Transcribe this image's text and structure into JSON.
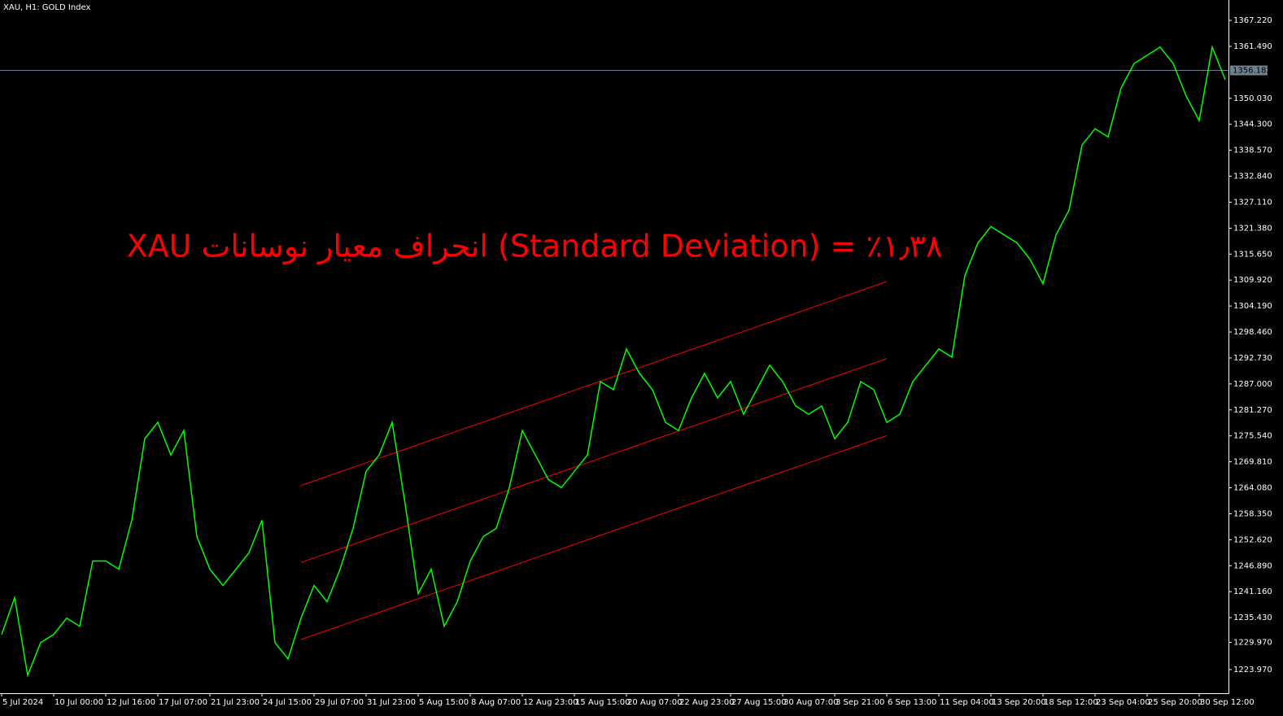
{
  "chart_data": {
    "type": "line",
    "title": "XAU, H1:  GOLD Index",
    "annotation": "XAU انحراف معیار نوسانات (Standard Deviation) = ٪۱٫۳۸",
    "categories": [
      "5 Jul 2024",
      null,
      null,
      null,
      "10 Jul 00:00",
      null,
      null,
      null,
      "12 Jul 16:00",
      null,
      null,
      null,
      "17 Jul 07:00",
      null,
      null,
      null,
      "21 Jul 23:00",
      null,
      null,
      null,
      "24 Jul 15:00",
      null,
      null,
      null,
      "29 Jul 07:00",
      null,
      null,
      null,
      "31 Jul 23:00",
      null,
      null,
      null,
      "5 Aug 15:00",
      null,
      null,
      null,
      "8 Aug 07:00",
      null,
      null,
      null,
      "12 Aug 23:00",
      null,
      null,
      null,
      "15 Aug 15:00",
      null,
      null,
      null,
      "20 Aug 07:00",
      null,
      null,
      null,
      "22 Aug 23:00",
      null,
      null,
      null,
      "27 Aug 15:00",
      null,
      null,
      null,
      "30 Aug 07:00",
      null,
      null,
      null,
      "3 Sep 21:00",
      null,
      null,
      null,
      "6 Sep 13:00",
      null,
      null,
      null,
      "11 Sep 04:00",
      null,
      null,
      null,
      "13 Sep 20:00",
      null,
      null,
      null,
      "18 Sep 12:00",
      null,
      null,
      null,
      "23 Sep 04:00",
      null,
      null,
      null,
      "25 Sep 20:00",
      null,
      null,
      null,
      "30 Sep 12:00",
      null,
      null
    ],
    "series": [
      {
        "color": "#00ff00",
        "values": [
          1231.72,
          1239.82,
          1222.72,
          1229.92,
          1231.72,
          1235.32,
          1233.52,
          1247.92,
          1247.92,
          1246.12,
          1256.92,
          1274.92,
          1278.52,
          1271.32,
          1276.72,
          1253.32,
          1246.12,
          1242.52,
          1246.12,
          1249.72,
          1256.92,
          1229.92,
          1226.32,
          1235.32,
          1242.52,
          1238.92,
          1246.12,
          1255.12,
          1267.72,
          1271.32,
          1278.52,
          1260.52,
          1240.72,
          1246.12,
          1233.52,
          1238.92,
          1247.92,
          1253.32,
          1255.12,
          1264.12,
          1276.72,
          1271.32,
          1265.92,
          1264.12,
          1267.72,
          1271.32,
          1287.52,
          1285.72,
          1294.72,
          1289.32,
          1285.72,
          1278.52,
          1276.72,
          1283.92,
          1289.32,
          1283.92,
          1287.52,
          1280.32,
          1285.72,
          1291.12,
          1287.52,
          1282.12,
          1280.32,
          1282.12,
          1274.92,
          1278.52,
          1287.52,
          1285.72,
          1278.52,
          1280.32,
          1287.52,
          1291.12,
          1294.72,
          1292.92,
          1310.92,
          1318.12,
          1321.72,
          1319.92,
          1318.12,
          1314.52,
          1309.12,
          1319.92,
          1325.32,
          1339.72,
          1343.32,
          1341.52,
          1352.32,
          1357.72,
          1359.52,
          1361.32,
          1357.72,
          1350.52,
          1345.12,
          1361.32,
          1354.12
        ]
      },
      {
        "color": "#ff0000",
        "values": [
          null,
          null,
          null,
          null,
          null,
          null,
          null,
          null,
          null,
          null,
          null,
          null,
          null,
          null,
          null,
          null,
          null,
          null,
          null,
          null,
          null,
          null,
          null,
          1264.6,
          1265.6,
          1266.6,
          1267.6,
          1268.6,
          1269.6,
          1270.6,
          1271.6,
          1272.6,
          1273.6,
          1274.6,
          1275.6,
          1276.6,
          1277.6,
          1278.6,
          1279.6,
          1280.6,
          1281.6,
          1282.6,
          1283.6,
          1284.6,
          1285.6,
          1286.6,
          1287.6,
          1288.6,
          1289.6,
          1290.6,
          1291.6,
          1292.6,
          1293.6,
          1294.6,
          1295.6,
          1296.6,
          1297.6,
          1298.6,
          1299.6,
          1300.6,
          1301.6,
          1302.6,
          1303.6,
          1304.6,
          1305.6,
          1306.6,
          1307.6,
          1308.6,
          1309.6,
          null,
          null,
          null,
          null,
          null,
          null,
          null,
          null,
          null,
          null,
          null,
          null,
          null,
          null,
          null,
          null,
          null,
          null,
          null,
          null,
          null,
          null,
          null,
          null,
          null,
          null
        ]
      },
      {
        "color": "#ff0000",
        "values": [
          null,
          null,
          null,
          null,
          null,
          null,
          null,
          null,
          null,
          null,
          null,
          null,
          null,
          null,
          null,
          null,
          null,
          null,
          null,
          null,
          null,
          null,
          null,
          1247.6,
          1248.6,
          1249.6,
          1250.6,
          1251.6,
          1252.6,
          1253.6,
          1254.6,
          1255.6,
          1256.6,
          1257.6,
          1258.6,
          1259.6,
          1260.6,
          1261.6,
          1262.6,
          1263.6,
          1264.6,
          1265.6,
          1266.6,
          1267.6,
          1268.6,
          1269.6,
          1270.6,
          1271.6,
          1272.6,
          1273.6,
          1274.6,
          1275.6,
          1276.6,
          1277.6,
          1278.6,
          1279.6,
          1280.6,
          1281.6,
          1282.6,
          1283.6,
          1284.6,
          1285.6,
          1286.6,
          1287.6,
          1288.6,
          1289.6,
          1290.6,
          1291.6,
          1292.6,
          null,
          null,
          null,
          null,
          null,
          null,
          null,
          null,
          null,
          null,
          null,
          null,
          null,
          null,
          null,
          null,
          null,
          null,
          null,
          null,
          null,
          null,
          null,
          null,
          null,
          null
        ]
      },
      {
        "color": "#ff0000",
        "values": [
          null,
          null,
          null,
          null,
          null,
          null,
          null,
          null,
          null,
          null,
          null,
          null,
          null,
          null,
          null,
          null,
          null,
          null,
          null,
          null,
          null,
          null,
          null,
          1230.6,
          1231.6,
          1232.6,
          1233.6,
          1234.6,
          1235.6,
          1236.6,
          1237.6,
          1238.6,
          1239.6,
          1240.6,
          1241.6,
          1242.6,
          1243.6,
          1244.6,
          1245.6,
          1246.6,
          1247.6,
          1248.6,
          1249.6,
          1250.6,
          1251.6,
          1252.6,
          1253.6,
          1254.6,
          1255.6,
          1256.6,
          1257.6,
          1258.6,
          1259.6,
          1260.6,
          1261.6,
          1262.6,
          1263.6,
          1264.6,
          1265.6,
          1266.6,
          1267.6,
          1268.6,
          1269.6,
          1270.6,
          1271.6,
          1272.6,
          1273.6,
          1274.6,
          1275.6,
          null,
          null,
          null,
          null,
          null,
          null,
          null,
          null,
          null,
          null,
          null,
          null,
          null,
          null,
          null,
          null,
          null,
          null,
          null,
          null,
          null,
          null,
          null,
          null,
          null,
          null
        ]
      }
    ],
    "current_price": 1356.182,
    "current_price_color": "#708090",
    "ylim": [
      1218.75,
      1371.72
    ],
    "yticks": [
      {
        "value": 1223.97,
        "label": "1223.970"
      },
      {
        "value": 1229.97,
        "label": "1229.970"
      },
      {
        "value": 1235.43,
        "label": "1235.430"
      },
      {
        "value": 1241.16,
        "label": "1241.160"
      },
      {
        "value": 1246.89,
        "label": "1246.890"
      },
      {
        "value": 1252.62,
        "label": "1252.620"
      },
      {
        "value": 1258.35,
        "label": "1258.350"
      },
      {
        "value": 1264.08,
        "label": "1264.080"
      },
      {
        "value": 1269.81,
        "label": "1269.810"
      },
      {
        "value": 1275.54,
        "label": "1275.540"
      },
      {
        "value": 1281.27,
        "label": "1281.270"
      },
      {
        "value": 1287,
        "label": "1287.000"
      },
      {
        "value": 1292.73,
        "label": "1292.730"
      },
      {
        "value": 1298.46,
        "label": "1298.460"
      },
      {
        "value": 1304.19,
        "label": "1304.190"
      },
      {
        "value": 1309.92,
        "label": "1309.920"
      },
      {
        "value": 1315.65,
        "label": "1315.650"
      },
      {
        "value": 1321.38,
        "label": "1321.380"
      },
      {
        "value": 1327.11,
        "label": "1327.110"
      },
      {
        "value": 1332.84,
        "label": "1332.840"
      },
      {
        "value": 1338.57,
        "label": "1338.570"
      },
      {
        "value": 1344.3,
        "label": "1344.300"
      },
      {
        "value": 1350.03,
        "label": "1350.030"
      },
      {
        "value": 1361.49,
        "label": "1361.490"
      },
      {
        "value": 1367.22,
        "label": "1367.220"
      }
    ],
    "grid": false
  }
}
